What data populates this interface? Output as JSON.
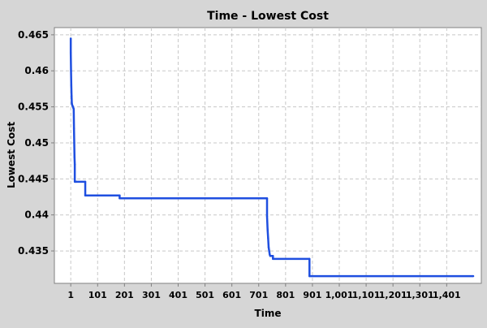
{
  "chart_data": {
    "type": "line",
    "title": "Time - Lowest Cost",
    "xlabel": "Time",
    "ylabel": "Lowest Cost",
    "xlim": [
      -60,
      1530
    ],
    "ylim": [
      0.4305,
      0.466
    ],
    "grid": true,
    "legend": "none",
    "x_ticks": [
      1,
      101,
      201,
      301,
      401,
      501,
      601,
      701,
      801,
      901,
      1001,
      1101,
      1201,
      1301,
      1401
    ],
    "x_tick_labels": [
      "1",
      "101",
      "201",
      "301",
      "401",
      "501",
      "601",
      "701",
      "801",
      "901",
      "1,001",
      "1,101",
      "1,201",
      "1,301",
      "1,401"
    ],
    "y_ticks": [
      0.435,
      0.44,
      0.445,
      0.45,
      0.455,
      0.46,
      0.465
    ],
    "y_tick_labels": [
      "0.435",
      "0.44",
      "0.445",
      "0.45",
      "0.455",
      "0.46",
      "0.465"
    ],
    "series": [
      {
        "color": "#1f4fe0",
        "x": [
          1,
          1,
          2,
          3,
          4,
          5,
          6,
          7,
          8,
          9,
          10,
          11,
          12,
          13,
          14,
          15,
          16,
          16,
          20,
          20,
          55,
          55,
          183,
          183,
          732,
          732,
          734,
          736,
          738,
          742,
          744,
          744,
          754,
          754,
          890,
          890,
          1500
        ],
        "y": [
          0.4645,
          0.4625,
          0.46,
          0.458,
          0.4565,
          0.4555,
          0.4553,
          0.4552,
          0.4551,
          0.455,
          0.4549,
          0.4548,
          0.4547,
          0.452,
          0.45,
          0.448,
          0.447,
          0.4446,
          0.4446,
          0.4446,
          0.4446,
          0.4427,
          0.4427,
          0.4423,
          0.4423,
          0.4398,
          0.438,
          0.4368,
          0.4355,
          0.4345,
          0.4343,
          0.4343,
          0.4343,
          0.4339,
          0.4339,
          0.4315,
          0.4315
        ]
      }
    ]
  }
}
